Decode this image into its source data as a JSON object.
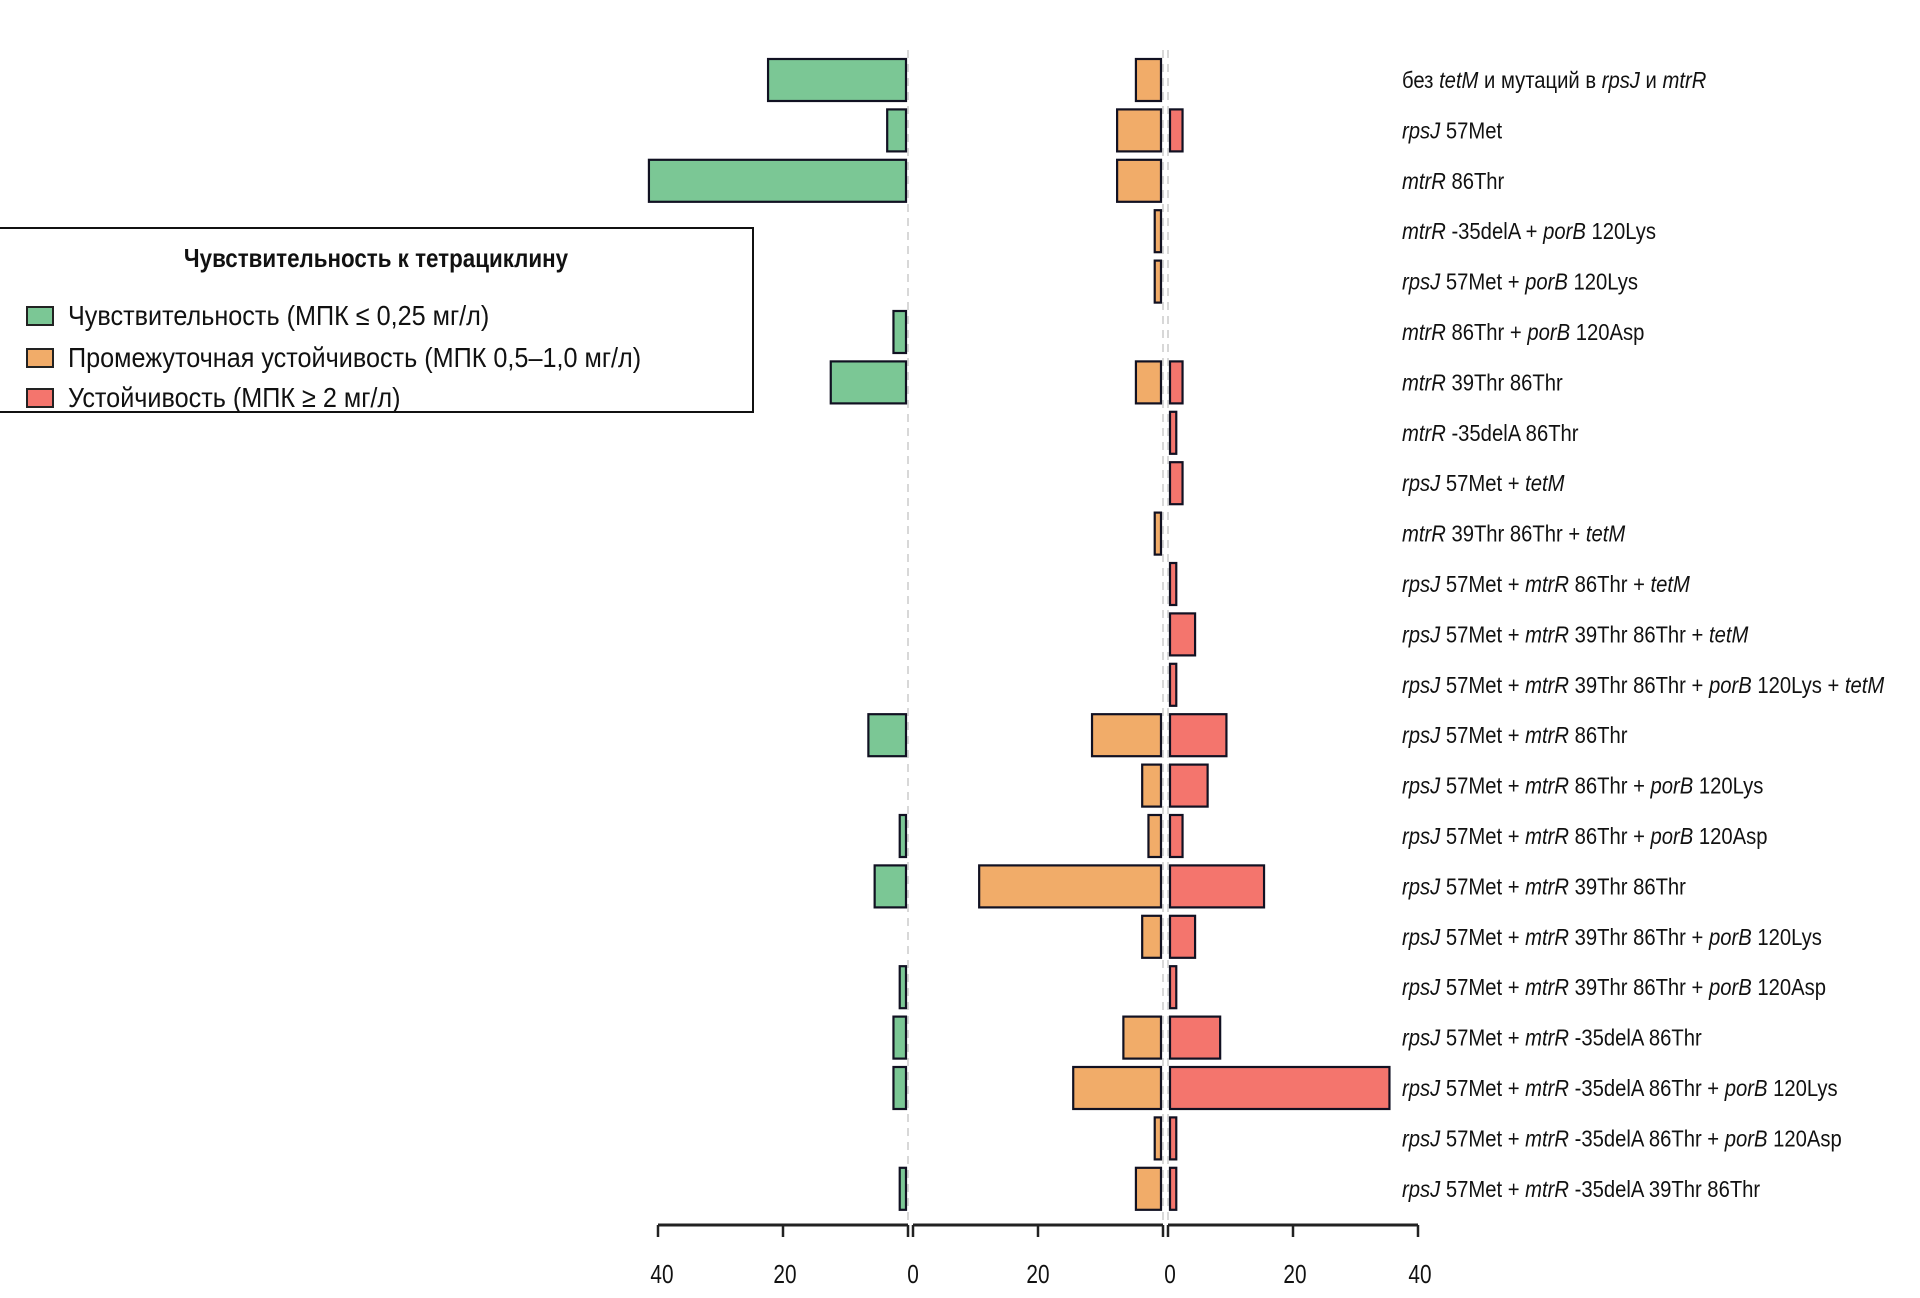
{
  "chart_data": {
    "type": "bar",
    "orientation": "horizontal",
    "layout": "three back-to-back panels",
    "title": "",
    "legend": {
      "title": "Чувствительность к тетрациклину",
      "placement": "left",
      "entries": [
        {
          "key": "susceptible",
          "label": "Чувствительность (МПК ≤ 0,25 мг/л)",
          "color": "#7BC795"
        },
        {
          "key": "intermediate",
          "label": "Промежуточная устойчивость (МПК 0,5–1,0 мг/л)",
          "color": "#F1AC69"
        },
        {
          "key": "resistant",
          "label": "Устойчивость (МПК ≥ 2 мг/л)",
          "color": "#F4756D"
        }
      ]
    },
    "categories": [
      [
        {
          "t": "без ",
          "i": false
        },
        {
          "t": "tetM",
          "i": true
        },
        {
          "t": " и мутаций в ",
          "i": false
        },
        {
          "t": "rpsJ",
          "i": true
        },
        {
          "t": " и ",
          "i": false
        },
        {
          "t": "mtrR",
          "i": true
        }
      ],
      [
        {
          "t": "rpsJ",
          "i": true
        },
        {
          "t": " 57Met",
          "i": false
        }
      ],
      [
        {
          "t": "mtrR",
          "i": true
        },
        {
          "t": " 86Thr",
          "i": false
        }
      ],
      [
        {
          "t": "mtrR",
          "i": true
        },
        {
          "t": " -35delA + ",
          "i": false
        },
        {
          "t": "porB",
          "i": true
        },
        {
          "t": " 120Lys",
          "i": false
        }
      ],
      [
        {
          "t": "rpsJ",
          "i": true
        },
        {
          "t": " 57Met + ",
          "i": false
        },
        {
          "t": "porB",
          "i": true
        },
        {
          "t": " 120Lys",
          "i": false
        }
      ],
      [
        {
          "t": "mtrR",
          "i": true
        },
        {
          "t": " 86Thr + ",
          "i": false
        },
        {
          "t": "porB",
          "i": true
        },
        {
          "t": " 120Asp",
          "i": false
        }
      ],
      [
        {
          "t": "mtrR",
          "i": true
        },
        {
          "t": " 39Thr 86Thr",
          "i": false
        }
      ],
      [
        {
          "t": "mtrR",
          "i": true
        },
        {
          "t": " -35delA 86Thr",
          "i": false
        }
      ],
      [
        {
          "t": "rpsJ",
          "i": true
        },
        {
          "t": " 57Met + ",
          "i": false
        },
        {
          "t": "tetM",
          "i": true
        }
      ],
      [
        {
          "t": "mtrR",
          "i": true
        },
        {
          "t": " 39Thr 86Thr + ",
          "i": false
        },
        {
          "t": "tetM",
          "i": true
        }
      ],
      [
        {
          "t": "rpsJ",
          "i": true
        },
        {
          "t": " 57Met + ",
          "i": false
        },
        {
          "t": "mtrR",
          "i": true
        },
        {
          "t": " 86Thr + ",
          "i": false
        },
        {
          "t": "tetM",
          "i": true
        }
      ],
      [
        {
          "t": "rpsJ",
          "i": true
        },
        {
          "t": " 57Met + ",
          "i": false
        },
        {
          "t": "mtrR",
          "i": true
        },
        {
          "t": " 39Thr 86Thr + ",
          "i": false
        },
        {
          "t": "tetM",
          "i": true
        }
      ],
      [
        {
          "t": "rpsJ",
          "i": true
        },
        {
          "t": " 57Met + ",
          "i": false
        },
        {
          "t": "mtrR",
          "i": true
        },
        {
          "t": " 39Thr 86Thr + ",
          "i": false
        },
        {
          "t": "porB",
          "i": true
        },
        {
          "t": " 120Lys + ",
          "i": false
        },
        {
          "t": "tetM",
          "i": true
        }
      ],
      [
        {
          "t": "rpsJ",
          "i": true
        },
        {
          "t": " 57Met + ",
          "i": false
        },
        {
          "t": "mtrR",
          "i": true
        },
        {
          "t": " 86Thr",
          "i": false
        }
      ],
      [
        {
          "t": "rpsJ",
          "i": true
        },
        {
          "t": " 57Met + ",
          "i": false
        },
        {
          "t": "mtrR",
          "i": true
        },
        {
          "t": " 86Thr + ",
          "i": false
        },
        {
          "t": "porB",
          "i": true
        },
        {
          "t": " 120Lys",
          "i": false
        }
      ],
      [
        {
          "t": "rpsJ",
          "i": true
        },
        {
          "t": " 57Met + ",
          "i": false
        },
        {
          "t": "mtrR",
          "i": true
        },
        {
          "t": " 86Thr + ",
          "i": false
        },
        {
          "t": "porB",
          "i": true
        },
        {
          "t": " 120Asp",
          "i": false
        }
      ],
      [
        {
          "t": "rpsJ",
          "i": true
        },
        {
          "t": " 57Met + ",
          "i": false
        },
        {
          "t": "mtrR",
          "i": true
        },
        {
          "t": " 39Thr 86Thr",
          "i": false
        }
      ],
      [
        {
          "t": "rpsJ",
          "i": true
        },
        {
          "t": " 57Met + ",
          "i": false
        },
        {
          "t": "mtrR",
          "i": true
        },
        {
          "t": " 39Thr 86Thr + ",
          "i": false
        },
        {
          "t": "porB",
          "i": true
        },
        {
          "t": " 120Lys",
          "i": false
        }
      ],
      [
        {
          "t": "rpsJ",
          "i": true
        },
        {
          "t": " 57Met + ",
          "i": false
        },
        {
          "t": "mtrR",
          "i": true
        },
        {
          "t": " 39Thr 86Thr + ",
          "i": false
        },
        {
          "t": "porB",
          "i": true
        },
        {
          "t": " 120Asp",
          "i": false
        }
      ],
      [
        {
          "t": "rpsJ",
          "i": true
        },
        {
          "t": " 57Met + ",
          "i": false
        },
        {
          "t": "mtrR",
          "i": true
        },
        {
          "t": " -35delA 86Thr",
          "i": false
        }
      ],
      [
        {
          "t": "rpsJ",
          "i": true
        },
        {
          "t": " 57Met + ",
          "i": false
        },
        {
          "t": "mtrR",
          "i": true
        },
        {
          "t": " -35delA 86Thr + ",
          "i": false
        },
        {
          "t": "porB",
          "i": true
        },
        {
          "t": " 120Lys",
          "i": false
        }
      ],
      [
        {
          "t": "rpsJ",
          "i": true
        },
        {
          "t": " 57Met + ",
          "i": false
        },
        {
          "t": "mtrR",
          "i": true
        },
        {
          "t": " -35delA 86Thr + ",
          "i": false
        },
        {
          "t": "porB",
          "i": true
        },
        {
          "t": " 120Asp",
          "i": false
        }
      ],
      [
        {
          "t": "rpsJ",
          "i": true
        },
        {
          "t": " 57Met + ",
          "i": false
        },
        {
          "t": "mtrR",
          "i": true
        },
        {
          "t": " -35delA 39Thr 86Thr",
          "i": false
        }
      ]
    ],
    "series": [
      {
        "name": "Чувствительность (МПК ≤ 0,25 мг/л)",
        "key": "susceptible",
        "direction": "left",
        "values": [
          22,
          3,
          41,
          0,
          0,
          2,
          12,
          0,
          0,
          0,
          0,
          0,
          0,
          6,
          0,
          1,
          5,
          0,
          1,
          2,
          2,
          0,
          1
        ]
      },
      {
        "name": "Промежуточная устойчивость (МПК 0,5–1,0 мг/л)",
        "key": "intermediate",
        "direction": "left",
        "values": [
          4,
          7,
          7,
          1,
          1,
          0,
          4,
          0,
          0,
          1,
          0,
          0,
          0,
          11,
          3,
          2,
          29,
          3,
          0,
          6,
          14,
          1,
          4
        ]
      },
      {
        "name": "Устойчивость (МПК ≥ 2 мг/л)",
        "key": "resistant",
        "direction": "right",
        "values": [
          0,
          2,
          0,
          0,
          0,
          0,
          2,
          1,
          2,
          0,
          1,
          4,
          1,
          9,
          6,
          2,
          15,
          4,
          1,
          8,
          35,
          1,
          1
        ]
      }
    ],
    "xaxis": {
      "panels": [
        {
          "key": "susceptible",
          "xlim": [
            40,
            0
          ],
          "ticks": [
            40,
            20,
            0
          ]
        },
        {
          "key": "intermediate",
          "xlim": [
            40,
            0
          ],
          "ticks": [
            40,
            20,
            0
          ]
        },
        {
          "key": "resistant",
          "xlim": [
            0,
            40
          ],
          "ticks": [
            0,
            20,
            40
          ]
        }
      ],
      "tick_labels": [
        "40",
        "20",
        "0",
        "20",
        "0",
        "20",
        "40"
      ]
    },
    "xlabel": "",
    "ylabel": "",
    "grid": false,
    "zero_lines": "dashed gray"
  }
}
